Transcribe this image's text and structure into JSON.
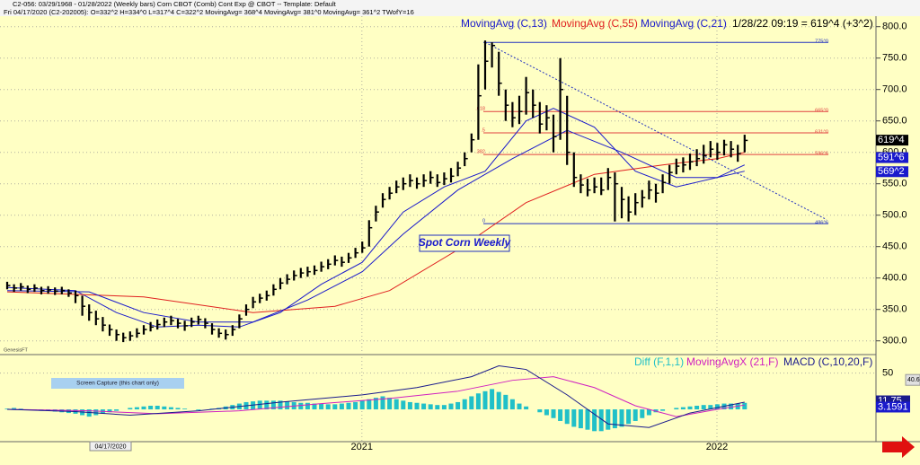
{
  "header": {
    "line1": "C2-056:  03/29/1968 - 01/28/2022  (Weekly bars)   Corn CBOT (Comb) Cont Exp @ CBOT  --  Template: Default",
    "line2": "Fri     04/17/2020  (C2-202005):  O=332^2  H=334^0  L=317^4  C=322^2  MovingAvg= 368^4  MovingAvg= 381^0  MovingAvg= 361^2  TWofY=16"
  },
  "cursor_label": "04/17/2020",
  "chart_data": [
    {
      "type": "ohlc",
      "subtitle": "1/28/22 09:19 = 619^4 (+3^2)",
      "annotations": [
        "Spot Corn Weekly",
        "GenesisFT"
      ],
      "bar_color": "#000000",
      "grid": true,
      "categories": [
        null,
        null,
        null,
        null,
        null,
        null,
        null,
        null,
        null,
        null,
        null,
        null,
        null,
        null,
        null,
        null,
        null,
        null,
        null,
        null,
        null,
        null,
        null,
        null,
        null,
        null,
        null,
        null,
        null,
        null,
        null,
        null,
        null,
        null,
        null,
        null,
        null,
        null,
        null,
        null,
        null,
        null,
        null,
        null,
        null,
        null,
        null,
        null,
        null,
        null,
        null,
        null,
        null,
        "2021",
        null,
        null,
        null,
        null,
        null,
        null,
        null,
        null,
        null,
        null,
        null,
        null,
        null,
        null,
        null,
        null,
        null,
        null,
        null,
        null,
        null,
        null,
        null,
        null,
        null,
        null,
        null,
        null,
        null,
        null,
        null,
        null,
        null,
        null,
        null,
        null,
        null,
        null,
        null,
        null,
        null,
        null,
        null,
        null,
        null,
        null,
        null,
        null,
        null,
        null,
        null,
        "2022",
        null,
        null,
        null
      ],
      "high": [
        394,
        390,
        392,
        388,
        390,
        386,
        387,
        385,
        386,
        382,
        380,
        372,
        358,
        348,
        338,
        326,
        318,
        313,
        315,
        320,
        325,
        330,
        334,
        337,
        340,
        335,
        332,
        337,
        340,
        336,
        328,
        320,
        318,
        325,
        342,
        358,
        370,
        375,
        380,
        390,
        400,
        406,
        412,
        416,
        418,
        420,
        426,
        430,
        436,
        434,
        440,
        448,
        458,
        492,
        515,
        535,
        545,
        555,
        560,
        565,
        560,
        565,
        570,
        565,
        568,
        575,
        585,
        600,
        630,
        740,
        778,
        775,
        760,
        700,
        680,
        690,
        720,
        700,
        680,
        675,
        660,
        750,
        690,
        600,
        565,
        558,
        560,
        560,
        575,
        568,
        545,
        530,
        535,
        540,
        555,
        550,
        565,
        580,
        590,
        592,
        598,
        605,
        612,
        618,
        615,
        620,
        618,
        612,
        628
      ],
      "low": [
        382,
        378,
        380,
        376,
        378,
        374,
        375,
        373,
        374,
        370,
        360,
        340,
        332,
        325,
        315,
        308,
        300,
        298,
        300,
        305,
        310,
        315,
        318,
        322,
        325,
        320,
        316,
        322,
        326,
        320,
        310,
        305,
        302,
        308,
        320,
        340,
        352,
        360,
        364,
        372,
        382,
        390,
        396,
        400,
        402,
        405,
        410,
        414,
        420,
        418,
        424,
        432,
        440,
        450,
        490,
        512,
        525,
        535,
        540,
        545,
        542,
        545,
        550,
        545,
        548,
        552,
        562,
        578,
        600,
        620,
        700,
        735,
        690,
        650,
        640,
        645,
        660,
        655,
        630,
        635,
        600,
        620,
        580,
        545,
        535,
        530,
        535,
        532,
        540,
        490,
        495,
        490,
        500,
        512,
        525,
        520,
        535,
        550,
        565,
        568,
        572,
        578,
        582,
        592,
        588,
        595,
        592,
        585,
        600
      ],
      "close": [
        388,
        384,
        386,
        382,
        384,
        380,
        381,
        379,
        380,
        376,
        372,
        355,
        345,
        335,
        325,
        318,
        310,
        305,
        308,
        312,
        318,
        322,
        326,
        330,
        332,
        328,
        324,
        330,
        334,
        328,
        318,
        312,
        310,
        318,
        335,
        350,
        362,
        368,
        372,
        382,
        392,
        398,
        404,
        408,
        410,
        412,
        418,
        422,
        428,
        425,
        432,
        440,
        448,
        480,
        505,
        525,
        535,
        545,
        550,
        555,
        550,
        555,
        560,
        552,
        558,
        562,
        575,
        590,
        620,
        690,
        745,
        770,
        710,
        675,
        655,
        665,
        695,
        675,
        645,
        655,
        625,
        700,
        600,
        560,
        548,
        540,
        545,
        540,
        560,
        550,
        525,
        505,
        520,
        528,
        540,
        535,
        552,
        568,
        578,
        580,
        585,
        590,
        595,
        605,
        600,
        612,
        605,
        598,
        619
      ],
      "series": [
        {
          "name": "MovingAvg (C,13)",
          "color": "#1a1acc",
          "x": [
            0,
            10,
            16,
            22,
            28,
            34,
            40,
            46,
            52,
            58,
            64,
            70,
            76,
            80,
            86,
            92,
            98,
            104,
            108
          ],
          "values": [
            385,
            380,
            345,
            322,
            325,
            322,
            345,
            390,
            425,
            505,
            545,
            570,
            650,
            670,
            640,
            570,
            545,
            560,
            580
          ]
        },
        {
          "name": "MovingAvg (C,55)",
          "color": "#e02020",
          "x": [
            0,
            20,
            36,
            48,
            56,
            66,
            76,
            86,
            96,
            104,
            108
          ],
          "values": [
            378,
            370,
            345,
            355,
            380,
            445,
            520,
            565,
            580,
            590,
            600
          ]
        },
        {
          "name": "MovingAvg (C,21)",
          "color": "#1a1acc",
          "x": [
            0,
            12,
            20,
            28,
            36,
            44,
            52,
            58,
            66,
            74,
            82,
            90,
            98,
            104,
            108
          ],
          "values": [
            380,
            378,
            345,
            330,
            330,
            365,
            410,
            470,
            540,
            590,
            635,
            600,
            560,
            560,
            570
          ]
        }
      ],
      "fib_levels": [
        {
          "value": 775.0,
          "label": "775^0",
          "color": "#2030c0"
        },
        {
          "value": 665.0,
          "label": "665^0",
          "ratio_label": ".618",
          "color": "#e04040"
        },
        {
          "value": 631.0,
          "label": "631^0",
          "ratio_label": ".5",
          "color": "#e04040"
        },
        {
          "value": 596.6,
          "label": "596^6",
          "ratio_label": ".382",
          "color": "#e04040"
        },
        {
          "value": 486.6,
          "label": "486^6",
          "ratio_label": "0",
          "color": "#2030c0"
        }
      ],
      "trendline": {
        "x": [
          70,
          120
        ],
        "values": [
          775,
          493
        ]
      },
      "price_tags": [
        {
          "value": 619.4,
          "label": "619^4",
          "color": "#000000"
        },
        {
          "value": 591.6,
          "label": "591^6",
          "color": "#1a1acc"
        },
        {
          "value": 569.2,
          "label": "569^2",
          "color": "#1a1acc"
        }
      ],
      "ylim": [
        281,
        821
      ],
      "yticks": [
        {
          "value": 300,
          "label": "300.0"
        },
        {
          "value": 350,
          "label": "350.0"
        },
        {
          "value": 400,
          "label": "400.0"
        },
        {
          "value": 450,
          "label": "450.0"
        },
        {
          "value": 500,
          "label": "500.0"
        },
        {
          "value": 550,
          "label": "550.0"
        },
        {
          "value": 600,
          "label": "600.0"
        },
        {
          "value": 650,
          "label": "650.0"
        },
        {
          "value": 700,
          "label": "700.0"
        },
        {
          "value": 750,
          "label": "750.0"
        },
        {
          "value": 800,
          "label": "800.0"
        }
      ]
    },
    {
      "type": "macd",
      "annotation": "Screen Capture (this chart only)",
      "series": [
        {
          "name": "Diff (F,1,1)",
          "color": "#20c0c8",
          "values": [
            1,
            2,
            1,
            0,
            -1,
            -2,
            -2,
            -3,
            -4,
            -5,
            -6,
            -8,
            -10,
            -8,
            -6,
            -4,
            -2,
            0,
            2,
            3,
            4,
            5,
            5,
            4,
            3,
            2,
            1,
            0,
            -1,
            0,
            1,
            2,
            4,
            6,
            8,
            10,
            11,
            12,
            12,
            12,
            12,
            11,
            10,
            9,
            9,
            8,
            8,
            7,
            7,
            8,
            9,
            10,
            12,
            14,
            16,
            18,
            16,
            14,
            12,
            10,
            9,
            8,
            7,
            6,
            6,
            8,
            10,
            14,
            18,
            22,
            25,
            28,
            24,
            20,
            14,
            8,
            4,
            0,
            -4,
            -8,
            -12,
            -16,
            -20,
            -24,
            -26,
            -28,
            -30,
            -30,
            -28,
            -26,
            -24,
            -20,
            -16,
            -12,
            -8,
            -4,
            -2,
            0,
            2,
            3,
            4,
            5,
            6,
            6,
            7,
            8,
            8,
            8,
            9
          ]
        },
        {
          "name": "MovingAvgX (21,F)",
          "color": "#d020c0",
          "x": [
            0,
            12,
            22,
            34,
            46,
            56,
            66,
            74,
            80,
            86,
            92,
            98,
            104,
            108
          ],
          "values": [
            0,
            -2,
            -6,
            -2,
            8,
            15,
            25,
            40,
            45,
            30,
            5,
            -10,
            0,
            6
          ]
        },
        {
          "name": "MACD (C,10,20,F)",
          "color": "#1a1a8c",
          "x": [
            0,
            10,
            18,
            28,
            40,
            52,
            60,
            68,
            72,
            76,
            82,
            88,
            94,
            100,
            108
          ],
          "values": [
            0,
            -3,
            -8,
            -2,
            10,
            20,
            30,
            45,
            60,
            55,
            20,
            -20,
            -25,
            -5,
            10
          ]
        }
      ],
      "value_tags": [
        {
          "value": 40.6,
          "label": "40.6",
          "color": "#e0e0e0"
        },
        {
          "value": 11.75,
          "label": "11.75",
          "color": "#1a1a8c"
        },
        {
          "value": 3.1591,
          "label": "3.1591",
          "color": "#1a1acc"
        }
      ],
      "ylim": [
        -42,
        73
      ],
      "yticks": [
        50
      ]
    }
  ]
}
